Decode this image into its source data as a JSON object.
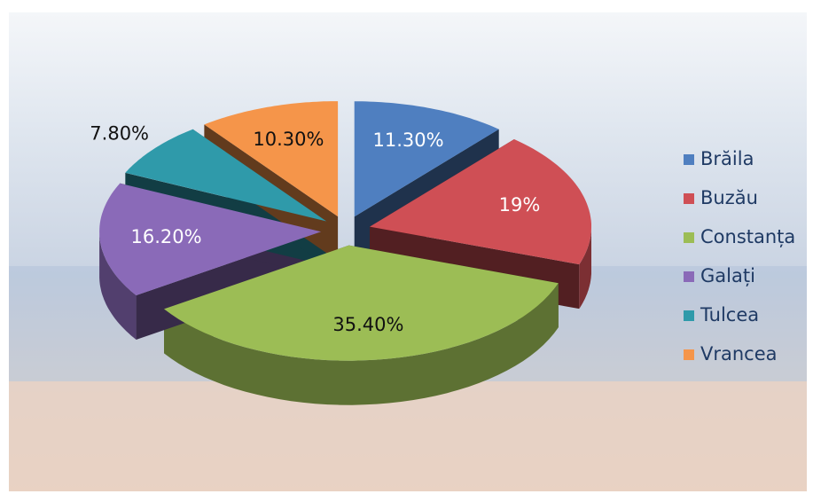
{
  "chart_data": {
    "type": "pie",
    "categories": [
      "Brăila",
      "Buzău",
      "Constanța",
      "Galați",
      "Tulcea",
      "Vrancea"
    ],
    "values": [
      11.3,
      19,
      35.4,
      16.2,
      7.8,
      10.3
    ],
    "value_labels": [
      "11.30%",
      "19%",
      "35.40%",
      "16.20%",
      "7.80%",
      "10.30%"
    ],
    "colors": [
      "#4f7fc0",
      "#cf4f55",
      "#9cbd55",
      "#8a6ab8",
      "#2f9aaa",
      "#f5954a"
    ]
  }
}
